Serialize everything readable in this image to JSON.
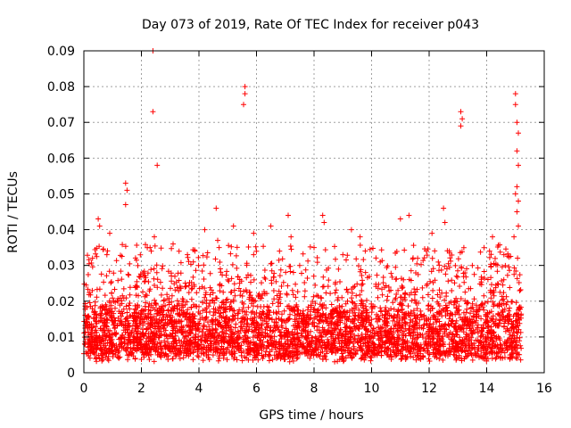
{
  "chart_data": {
    "type": "scatter",
    "title": "Day 073 of 2019, Rate Of TEC Index for receiver p043",
    "xlabel": "GPS time / hours",
    "ylabel": "ROTI / TECUs",
    "xlim": [
      0,
      16
    ],
    "ylim": [
      0,
      0.09
    ],
    "xticks": [
      "0",
      "2",
      "4",
      "6",
      "8",
      "10",
      "12",
      "14",
      "16"
    ],
    "yticks": [
      "0",
      "0.01",
      "0.02",
      "0.03",
      "0.04",
      "0.05",
      "0.06",
      "0.07",
      "0.08",
      "0.09"
    ],
    "grid": true,
    "marker": "+",
    "color": "#ff0000",
    "x_data_range": [
      0,
      15.2
    ],
    "baseline_band": [
      0.005,
      0.018
    ],
    "outliers": [
      {
        "x": 0.5,
        "y": 0.043
      },
      {
        "x": 0.55,
        "y": 0.041
      },
      {
        "x": 0.9,
        "y": 0.039
      },
      {
        "x": 1.45,
        "y": 0.053
      },
      {
        "x": 1.5,
        "y": 0.051
      },
      {
        "x": 1.45,
        "y": 0.047
      },
      {
        "x": 2.4,
        "y": 0.09
      },
      {
        "x": 2.4,
        "y": 0.073
      },
      {
        "x": 2.55,
        "y": 0.058
      },
      {
        "x": 2.45,
        "y": 0.038
      },
      {
        "x": 3.1,
        "y": 0.036
      },
      {
        "x": 3.6,
        "y": 0.033
      },
      {
        "x": 4.2,
        "y": 0.04
      },
      {
        "x": 4.6,
        "y": 0.046
      },
      {
        "x": 4.65,
        "y": 0.037
      },
      {
        "x": 5.2,
        "y": 0.041
      },
      {
        "x": 5.6,
        "y": 0.08
      },
      {
        "x": 5.6,
        "y": 0.078
      },
      {
        "x": 5.55,
        "y": 0.075
      },
      {
        "x": 5.9,
        "y": 0.039
      },
      {
        "x": 6.5,
        "y": 0.041
      },
      {
        "x": 7.1,
        "y": 0.044
      },
      {
        "x": 7.2,
        "y": 0.038
      },
      {
        "x": 8.3,
        "y": 0.044
      },
      {
        "x": 8.35,
        "y": 0.042
      },
      {
        "x": 9.3,
        "y": 0.04
      },
      {
        "x": 9.6,
        "y": 0.038
      },
      {
        "x": 11.0,
        "y": 0.043
      },
      {
        "x": 11.3,
        "y": 0.044
      },
      {
        "x": 12.1,
        "y": 0.039
      },
      {
        "x": 12.5,
        "y": 0.046
      },
      {
        "x": 12.55,
        "y": 0.042
      },
      {
        "x": 13.1,
        "y": 0.073
      },
      {
        "x": 13.15,
        "y": 0.071
      },
      {
        "x": 13.1,
        "y": 0.069
      },
      {
        "x": 14.2,
        "y": 0.038
      },
      {
        "x": 15.0,
        "y": 0.078
      },
      {
        "x": 15.0,
        "y": 0.075
      },
      {
        "x": 15.05,
        "y": 0.07
      },
      {
        "x": 15.1,
        "y": 0.067
      },
      {
        "x": 15.05,
        "y": 0.062
      },
      {
        "x": 15.1,
        "y": 0.058
      },
      {
        "x": 15.05,
        "y": 0.052
      },
      {
        "x": 15.0,
        "y": 0.05
      },
      {
        "x": 15.1,
        "y": 0.048
      },
      {
        "x": 15.05,
        "y": 0.045
      },
      {
        "x": 15.1,
        "y": 0.041
      },
      {
        "x": 14.95,
        "y": 0.038
      },
      {
        "x": 0.3,
        "y": 0.032
      },
      {
        "x": 0.8,
        "y": 0.033
      },
      {
        "x": 2.3,
        "y": 0.035
      },
      {
        "x": 4.7,
        "y": 0.035
      },
      {
        "x": 5.9,
        "y": 0.033
      },
      {
        "x": 6.8,
        "y": 0.034
      },
      {
        "x": 7.5,
        "y": 0.03
      },
      {
        "x": 8.0,
        "y": 0.035
      },
      {
        "x": 9.0,
        "y": 0.033
      },
      {
        "x": 10.3,
        "y": 0.031
      },
      {
        "x": 11.6,
        "y": 0.032
      },
      {
        "x": 12.7,
        "y": 0.034
      },
      {
        "x": 13.5,
        "y": 0.03
      },
      {
        "x": 14.1,
        "y": 0.034
      },
      {
        "x": 14.6,
        "y": 0.033
      }
    ]
  }
}
